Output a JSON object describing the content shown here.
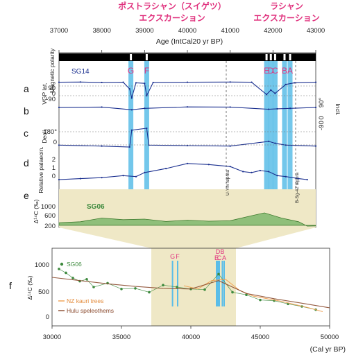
{
  "titles": {
    "left_line1": "ポストラシャン（スイゲツ）",
    "left_line2": "エクスカーション",
    "right_line1": "ラシャン",
    "right_line2": "エクスカーション"
  },
  "top_axis": {
    "label": "Age (IntCal20 yr BP)",
    "ticks": [
      "37000",
      "38000",
      "39000",
      "40000",
      "41000",
      "42000",
      "43000"
    ],
    "range": [
      37000,
      43000
    ]
  },
  "panel_labels": [
    "a",
    "b",
    "c",
    "d",
    "e",
    "f"
  ],
  "labels": {
    "magnetic_polarity": "Magnetic polarity",
    "sg14": "SG14",
    "vgp": "VGP lat.",
    "incli": "Incli.",
    "decli": "Decli.",
    "rel_paleo": "Relative palaeoin.",
    "sg06": "SG06",
    "uym": "U-Ym tephra",
    "bsg": "B-Sg-42 tephra",
    "d14c": "Δ¹⁴C (‰)",
    "bottom_xlabel": "(Cal yr BP)"
  },
  "events_top": [
    "G",
    "F",
    "E",
    "D",
    "C",
    "B",
    "A"
  ],
  "events_bottom": [
    "G",
    "F",
    "D",
    "E",
    "C",
    "B",
    "A"
  ],
  "axis_ticks": {
    "vgp": [
      "90",
      "0",
      "-90"
    ],
    "incli": [
      "90°",
      "0",
      "-90"
    ],
    "decli": [
      "180°",
      "0"
    ],
    "rel": [
      "2",
      "1",
      "0"
    ],
    "e": [
      "1000",
      "600",
      "200"
    ],
    "f_y": [
      "1000",
      "500",
      "0"
    ],
    "f_x": [
      "30000",
      "35000",
      "40000",
      "45000",
      "50000"
    ]
  },
  "legend": {
    "sg06": "SG06",
    "kauri": "NZ kauri trees",
    "hulu": "Hulu speleothems"
  },
  "colors": {
    "magenta": "#e0327e",
    "navy": "#1a2f8f",
    "bar_blue": "#5bbde8",
    "band_bg": "#efe8c6",
    "green": "#3e8a3e",
    "green_fill": "#8fbf7a",
    "orange": "#f0a050",
    "brown": "#8a4a2e"
  },
  "chart_data": [
    {
      "type": "line",
      "title": "",
      "xlabel": "Age (IntCal20 yr BP)",
      "xlim": [
        37000,
        43000
      ],
      "event_ages": {
        "G": 38680,
        "F": 39050,
        "E": 41850,
        "D": 41950,
        "C": 42050,
        "B": 42270,
        "A": 42400
      },
      "series": [
        {
          "name": "VGP lat.",
          "x": [
            37000,
            37500,
            38000,
            38500,
            38650,
            38700,
            38800,
            39000,
            39050,
            39200,
            40000,
            41000,
            41500,
            41850,
            41950,
            42050,
            42300,
            42500,
            43000
          ],
          "values": [
            80,
            82,
            78,
            80,
            20,
            -60,
            75,
            70,
            -40,
            78,
            80,
            82,
            80,
            -30,
            10,
            -20,
            60,
            75,
            80
          ]
        },
        {
          "name": "Incli.",
          "x": [
            37000,
            38000,
            38700,
            39000,
            40000,
            41000,
            41900,
            42100,
            42400,
            43000
          ],
          "values": [
            55,
            58,
            30,
            45,
            60,
            58,
            35,
            40,
            45,
            55
          ]
        },
        {
          "name": "Decli.",
          "x": [
            37000,
            38000,
            38650,
            38700,
            39050,
            39100,
            40000,
            41000,
            41900,
            42050,
            42300,
            43000
          ],
          "values": [
            20,
            10,
            0,
            180,
            200,
            20,
            15,
            10,
            60,
            40,
            20,
            10
          ]
        },
        {
          "name": "Relative palaeoin.",
          "x": [
            37000,
            37500,
            38000,
            38500,
            38800,
            39000,
            39500,
            40000,
            40500,
            41000,
            41300,
            41500,
            41700,
            41900,
            42100,
            42300,
            42600,
            42800
          ],
          "values": [
            0.2,
            0.3,
            0.4,
            0.6,
            0.5,
            0.9,
            1.3,
            1.8,
            1.7,
            1.5,
            1.0,
            0.9,
            1.1,
            1.0,
            0.6,
            0.5,
            0.3,
            0.2
          ]
        },
        {
          "name": "SG06",
          "x": [
            37000,
            37500,
            38000,
            38500,
            39000,
            39500,
            40000,
            40500,
            41000,
            41500,
            41800,
            42200,
            42600,
            42800,
            43000
          ],
          "values": [
            380,
            420,
            560,
            500,
            520,
            430,
            480,
            440,
            460,
            650,
            760,
            560,
            420,
            250,
            260
          ]
        }
      ]
    },
    {
      "type": "scatter",
      "title": "",
      "xlabel": "(Cal yr BP)",
      "ylabel": "Δ¹⁴C (‰)",
      "xlim": [
        30000,
        50000
      ],
      "ylim": [
        -100,
        1100
      ],
      "series": [
        {
          "name": "SG06",
          "x": [
            30500,
            31000,
            31500,
            32000,
            32500,
            33000,
            34000,
            35000,
            36000,
            37000,
            38000,
            39000,
            40000,
            41000,
            42000,
            43000,
            44000,
            45000,
            46000,
            47000,
            48000,
            49000
          ],
          "values": [
            780,
            720,
            640,
            590,
            620,
            500,
            560,
            470,
            480,
            420,
            530,
            500,
            470,
            460,
            700,
            420,
            380,
            300,
            290,
            240,
            200,
            150
          ]
        },
        {
          "name": "NZ kauri trees",
          "x": [
            39500,
            40500,
            41500,
            42500,
            43500,
            44500,
            45500,
            46500,
            47500,
            48500,
            49500
          ],
          "values": [
            520,
            470,
            600,
            620,
            450,
            360,
            320,
            280,
            230,
            180,
            120
          ]
        },
        {
          "name": "Hulu speleothems",
          "x": [
            30000,
            32000,
            34000,
            36000,
            38000,
            40000,
            42000,
            44000,
            46000,
            48000,
            50000
          ],
          "values": [
            650,
            600,
            550,
            510,
            480,
            470,
            600,
            400,
            320,
            250,
            180
          ]
        }
      ]
    }
  ]
}
